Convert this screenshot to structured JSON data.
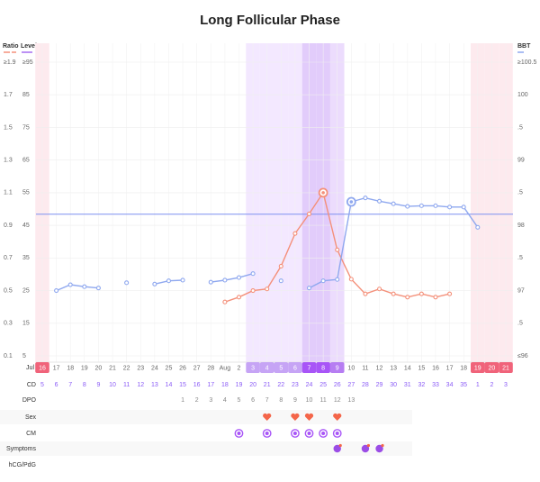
{
  "chart_data": {
    "type": "line",
    "title": "Long Follicular Phase",
    "month": "Jul",
    "x": [
      "16",
      "17",
      "18",
      "19",
      "20",
      "21",
      "22",
      "23",
      "24",
      "25",
      "26",
      "27",
      "28",
      "Aug",
      "2",
      "3",
      "4",
      "5",
      "6",
      "7",
      "8",
      "9",
      "10",
      "11",
      "12",
      "13",
      "14",
      "15",
      "16",
      "17",
      "18",
      "19",
      "20",
      "21"
    ],
    "highlight": [
      "period",
      null,
      null,
      null,
      null,
      null,
      null,
      null,
      null,
      null,
      null,
      null,
      null,
      null,
      null,
      "fertile",
      "fertile",
      "fertile",
      "fertile",
      "peak",
      "peak",
      "high",
      null,
      null,
      null,
      null,
      null,
      null,
      null,
      null,
      null,
      "period",
      "period",
      "period"
    ],
    "rows": {
      "cd": {
        "label": "CD",
        "values": [
          5,
          6,
          7,
          8,
          9,
          10,
          11,
          12,
          13,
          14,
          15,
          16,
          17,
          18,
          19,
          20,
          21,
          22,
          23,
          24,
          25,
          26,
          27,
          28,
          29,
          30,
          31,
          32,
          33,
          34,
          35,
          1,
          2,
          3
        ]
      },
      "dpo": {
        "label": "DPO",
        "values": [
          null,
          null,
          null,
          null,
          null,
          null,
          null,
          null,
          null,
          null,
          1,
          2,
          3,
          4,
          5,
          6,
          7,
          8,
          9,
          10,
          11,
          12,
          13,
          null,
          null,
          null,
          null,
          null,
          null,
          null,
          null,
          null,
          null,
          null
        ]
      },
      "sex": {
        "label": "Sex",
        "values": [
          false,
          false,
          false,
          false,
          false,
          false,
          false,
          false,
          false,
          false,
          false,
          false,
          false,
          false,
          false,
          false,
          true,
          false,
          true,
          true,
          false,
          true,
          false,
          false,
          false,
          false,
          false,
          false,
          false,
          false,
          false,
          false,
          false,
          false
        ]
      },
      "cm": {
        "label": "CM",
        "values": [
          false,
          false,
          false,
          false,
          false,
          false,
          false,
          false,
          false,
          false,
          false,
          false,
          false,
          false,
          true,
          false,
          true,
          false,
          true,
          true,
          true,
          true,
          false,
          false,
          false,
          false,
          false,
          false,
          false,
          false,
          false,
          false,
          false,
          false
        ]
      },
      "symptoms": {
        "label": "Symptoms",
        "values": [
          false,
          false,
          false,
          false,
          false,
          false,
          false,
          false,
          false,
          false,
          false,
          false,
          false,
          false,
          false,
          false,
          false,
          false,
          false,
          false,
          false,
          true,
          false,
          true,
          true,
          false,
          false,
          false,
          false,
          false,
          false,
          false,
          false,
          false
        ]
      },
      "hcg": {
        "label": "hCG/PdG",
        "values": []
      }
    },
    "ylabel": "Ratio",
    "ylim": [
      0.1,
      1.9
    ],
    "yticks": [
      {
        "value": 1.9,
        "label": "≥1.9"
      },
      1.7,
      1.5,
      1.3,
      1.1,
      0.9,
      0.7,
      0.5,
      0.3,
      0.1
    ],
    "level_label": "Level",
    "level_color": "#a66cf0",
    "level_lim": [
      5,
      95
    ],
    "level_ticks": [
      {
        "value": 95,
        "label": "≥95"
      },
      85,
      75,
      65,
      55,
      45,
      35,
      25,
      15,
      5
    ],
    "y2label": "BBT",
    "y2lim": [
      96,
      100.5
    ],
    "y2ticks": [
      {
        "value": 100.5,
        "label": "≥100.5"
      },
      100,
      {
        "value": 99.5,
        "label": ".5"
      },
      99,
      {
        "value": 98.5,
        "label": ".5"
      },
      98,
      {
        "value": 97.5,
        "label": ".5"
      },
      97,
      {
        "value": 96.5,
        "label": ".5"
      },
      {
        "value": 96,
        "label": "≤96"
      }
    ],
    "coverline": 98.17,
    "coverline_color": "#7c8ff0",
    "series": [
      {
        "name": "Ratio",
        "color": "#f4907a",
        "axis": "y",
        "peak": 20,
        "values": [
          null,
          null,
          null,
          null,
          null,
          null,
          null,
          null,
          null,
          null,
          null,
          null,
          null,
          0.43,
          0.46,
          0.5,
          0.51,
          0.65,
          0.85,
          0.97,
          1.1,
          0.75,
          0.57,
          0.48,
          0.51,
          0.48,
          0.46,
          0.48,
          0.46,
          0.48,
          null,
          null,
          null,
          null
        ]
      },
      {
        "name": "BBT",
        "color": "#8fa8ef",
        "axis": "y2",
        "peak": 22,
        "values": [
          null,
          97.0,
          97.09,
          97.06,
          97.04,
          null,
          97.12,
          null,
          97.1,
          97.15,
          97.16,
          null,
          97.13,
          97.16,
          97.2,
          97.26,
          null,
          97.15,
          null,
          97.04,
          97.15,
          97.17,
          98.36,
          98.42,
          98.37,
          98.33,
          98.29,
          98.3,
          98.3,
          98.28,
          98.28,
          97.97,
          null,
          null
        ]
      }
    ]
  }
}
